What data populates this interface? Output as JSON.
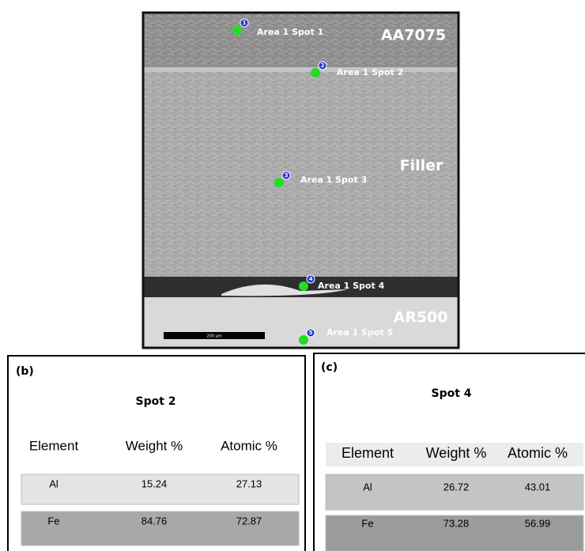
{
  "image": {
    "regions": [
      "AA7075",
      "Filler",
      "AR500"
    ],
    "spots": [
      {
        "number": "1",
        "label": "Area 1 Spot 1"
      },
      {
        "number": "2",
        "label": "Area 1 Spot 2"
      },
      {
        "number": "3",
        "label": "Area 1 Spot 3"
      },
      {
        "number": "4",
        "label": "Area 1 Spot 4"
      },
      {
        "number": "5",
        "label": "Area 1 Spot 5"
      }
    ],
    "scale_bar": "200 µm"
  },
  "panels": [
    {
      "letter": "(b)",
      "title": "Spot 2",
      "header": [
        "Element",
        "Weight %",
        "Atomic %"
      ],
      "rows": [
        [
          "Al",
          "15.24",
          "27.13"
        ],
        [
          "Fe",
          "84.76",
          "72.87"
        ]
      ]
    },
    {
      "letter": "(c)",
      "title": "Spot 4",
      "header": [
        "Element",
        "Weight %",
        "Atomic %"
      ],
      "rows": [
        [
          "Al",
          "26.72",
          "43.01"
        ],
        [
          "Fe",
          "73.28",
          "56.99"
        ]
      ]
    }
  ]
}
